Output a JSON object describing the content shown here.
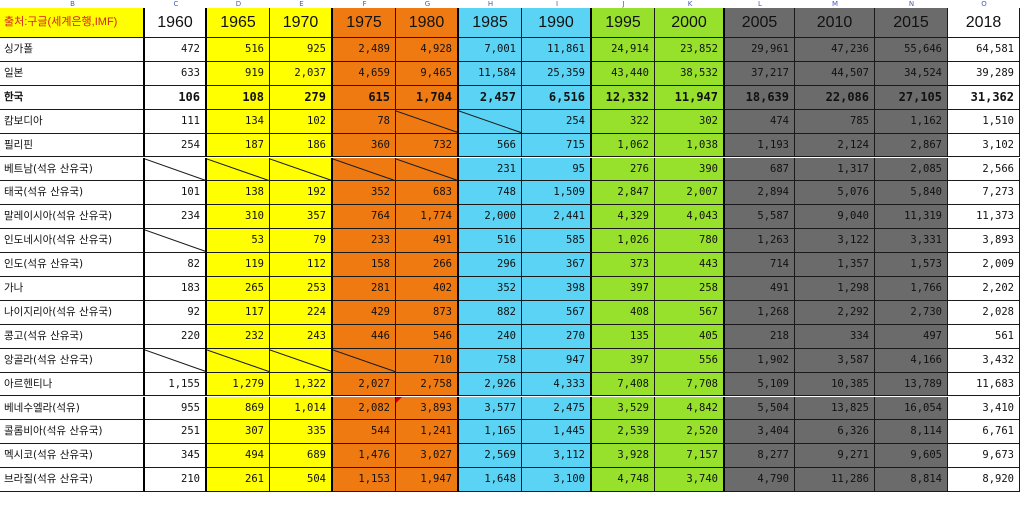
{
  "spreadsheet": {
    "column_letters": [
      "B",
      "C",
      "D",
      "E",
      "F",
      "G",
      "H",
      "I",
      "J",
      "K",
      "L",
      "M",
      "N",
      "O"
    ],
    "source_label": "출처:구글(세계은행,IMF)",
    "years": [
      "1960",
      "1965",
      "1970",
      "1975",
      "1980",
      "1985",
      "1990",
      "1995",
      "2000",
      "2005",
      "2010",
      "2015",
      "2018"
    ],
    "year_fills": [
      "#ffffff",
      "#ffff00",
      "#ffff00",
      "#f07a12",
      "#f07a12",
      "#5bd3f5",
      "#5bd3f5",
      "#97e12c",
      "#97e12c",
      "#6b6b6b",
      "#6b6b6b",
      "#6b6b6b",
      "#ffffff"
    ],
    "bold_row": 2,
    "rows": [
      {
        "label": "싱가폴",
        "values": [
          "472",
          "516",
          "925",
          "2,489",
          "4,928",
          "7,001",
          "11,861",
          "24,914",
          "23,852",
          "29,961",
          "47,236",
          "55,646",
          "64,581"
        ]
      },
      {
        "label": "일본",
        "values": [
          "633",
          "919",
          "2,037",
          "4,659",
          "9,465",
          "11,584",
          "25,359",
          "43,440",
          "38,532",
          "37,217",
          "44,507",
          "34,524",
          "39,289"
        ]
      },
      {
        "label": "한국",
        "values": [
          "106",
          "108",
          "279",
          "615",
          "1,704",
          "2,457",
          "6,516",
          "12,332",
          "11,947",
          "18,639",
          "22,086",
          "27,105",
          "31,362"
        ]
      },
      {
        "label": "캄보디아",
        "values": [
          "111",
          "134",
          "102",
          "78",
          "",
          "",
          "254",
          "322",
          "302",
          "474",
          "785",
          "1,162",
          "1,510"
        ]
      },
      {
        "label": "필리핀",
        "values": [
          "254",
          "187",
          "186",
          "360",
          "732",
          "566",
          "715",
          "1,062",
          "1,038",
          "1,193",
          "2,124",
          "2,867",
          "3,102"
        ]
      },
      {
        "label": "베트남(석유 산유국)",
        "values": [
          "",
          "",
          "",
          "",
          "",
          "231",
          "95",
          "276",
          "390",
          "687",
          "1,317",
          "2,085",
          "2,566"
        ]
      },
      {
        "label": "태국(석유 산유국)",
        "values": [
          "101",
          "138",
          "192",
          "352",
          "683",
          "748",
          "1,509",
          "2,847",
          "2,007",
          "2,894",
          "5,076",
          "5,840",
          "7,273"
        ]
      },
      {
        "label": "말레이시아(석유 산유국)",
        "values": [
          "234",
          "310",
          "357",
          "764",
          "1,774",
          "2,000",
          "2,441",
          "4,329",
          "4,043",
          "5,587",
          "9,040",
          "11,319",
          "11,373"
        ]
      },
      {
        "label": "인도네시아(석유 산유국)",
        "values": [
          "",
          "53",
          "79",
          "233",
          "491",
          "516",
          "585",
          "1,026",
          "780",
          "1,263",
          "3,122",
          "3,331",
          "3,893"
        ]
      },
      {
        "label": "인도(석유 산유국)",
        "values": [
          "82",
          "119",
          "112",
          "158",
          "266",
          "296",
          "367",
          "373",
          "443",
          "714",
          "1,357",
          "1,573",
          "2,009"
        ]
      },
      {
        "label": "가나",
        "values": [
          "183",
          "265",
          "253",
          "281",
          "402",
          "352",
          "398",
          "397",
          "258",
          "491",
          "1,298",
          "1,766",
          "2,202"
        ]
      },
      {
        "label": "나이지리아(석유 산유국)",
        "values": [
          "92",
          "117",
          "224",
          "429",
          "873",
          "882",
          "567",
          "408",
          "567",
          "1,268",
          "2,292",
          "2,730",
          "2,028"
        ]
      },
      {
        "label": "콩고(석유 산유국)",
        "values": [
          "220",
          "232",
          "243",
          "446",
          "546",
          "240",
          "270",
          "135",
          "405",
          "218",
          "334",
          "497",
          "561"
        ]
      },
      {
        "label": "앙골라(석유 산유국)",
        "values": [
          "",
          "",
          "",
          "",
          "710",
          "758",
          "947",
          "397",
          "556",
          "1,902",
          "3,587",
          "4,166",
          "3,432"
        ]
      },
      {
        "label": "아르헨티나",
        "values": [
          "1,155",
          "1,279",
          "1,322",
          "2,027",
          "2,758",
          "2,926",
          "4,333",
          "7,408",
          "7,708",
          "5,109",
          "10,385",
          "13,789",
          "11,683"
        ]
      },
      {
        "label": "베네수엘라(석유)",
        "values": [
          "955",
          "869",
          "1,014",
          "2,082",
          "3,893",
          "3,577",
          "2,475",
          "3,529",
          "4,842",
          "5,504",
          "13,825",
          "16,054",
          "3,410"
        ]
      },
      {
        "label": "콜롬비아(석유 산유국)",
        "values": [
          "251",
          "307",
          "335",
          "544",
          "1,241",
          "1,165",
          "1,445",
          "2,539",
          "2,520",
          "3,404",
          "6,326",
          "8,114",
          "6,761"
        ]
      },
      {
        "label": "멕시코(석유 산유국)",
        "values": [
          "345",
          "494",
          "689",
          "1,476",
          "3,027",
          "2,569",
          "3,112",
          "3,928",
          "7,157",
          "8,277",
          "9,271",
          "9,605",
          "9,673"
        ]
      },
      {
        "label": "브라질(석유 산유국)",
        "values": [
          "210",
          "261",
          "504",
          "1,153",
          "1,947",
          "1,648",
          "3,100",
          "4,748",
          "3,740",
          "4,790",
          "11,286",
          "8,814",
          "8,920"
        ]
      }
    ]
  }
}
